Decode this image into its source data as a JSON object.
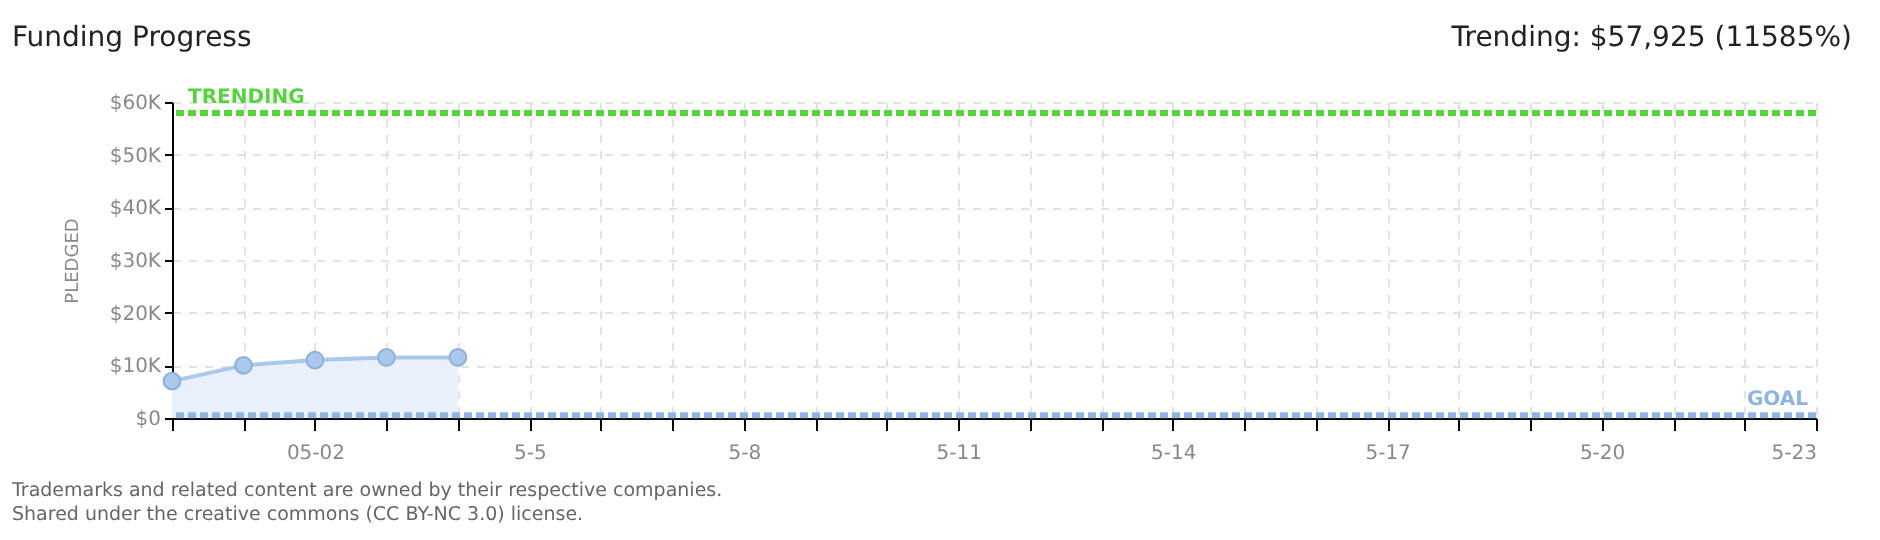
{
  "chart_data": {
    "type": "area",
    "title": "Funding Progress",
    "subtitle": "Trending:  $57,925 (11585%)",
    "ylabel": "PLEDGED",
    "x": [
      "--04-30",
      "--05-01",
      "--05-02",
      "--05-03",
      "--05-04"
    ],
    "series": [
      {
        "color": "#a9c8ec",
        "values": [
          7000,
          10000,
          11000,
          11500,
          11500
        ]
      }
    ],
    "xlim": [
      "--04-30",
      "--05-23"
    ],
    "xticks": [
      {
        "value": "--04-30",
        "label": null
      },
      {
        "value": "--05-01",
        "label": null
      },
      {
        "value": "--05-02",
        "label": "05-02"
      },
      {
        "value": "--05-03",
        "label": null
      },
      {
        "value": "--05-04",
        "label": null
      },
      {
        "value": "--05-05",
        "label": "5-5"
      },
      {
        "value": "--05-06",
        "label": null
      },
      {
        "value": "--05-07",
        "label": null
      },
      {
        "value": "--05-08",
        "label": "5-8"
      },
      {
        "value": "--05-09",
        "label": null
      },
      {
        "value": "--05-10",
        "label": null
      },
      {
        "value": "--05-11",
        "label": "5-11"
      },
      {
        "value": "--05-12",
        "label": null
      },
      {
        "value": "--05-13",
        "label": null
      },
      {
        "value": "--05-14",
        "label": "5-14"
      },
      {
        "value": "--05-15",
        "label": null
      },
      {
        "value": "--05-16",
        "label": null
      },
      {
        "value": "--05-17",
        "label": "5-17"
      },
      {
        "value": "--05-18",
        "label": null
      },
      {
        "value": "--05-19",
        "label": null
      },
      {
        "value": "--05-20",
        "label": "5-20"
      },
      {
        "value": "--05-21",
        "label": null
      },
      {
        "value": "--05-22",
        "label": null
      },
      {
        "value": "--05-23",
        "label": "5-23"
      }
    ],
    "ylim": [
      0,
      60000
    ],
    "yticks": [
      {
        "value": 0,
        "label": "$0"
      },
      {
        "value": 10000,
        "label": "$10K"
      },
      {
        "value": 20000,
        "label": "$20K"
      },
      {
        "value": 30000,
        "label": "$30K"
      },
      {
        "value": 40000,
        "label": "$40K"
      },
      {
        "value": 50000,
        "label": "$50K"
      },
      {
        "value": 60000,
        "label": "$60K"
      }
    ],
    "ref_lines": [
      {
        "axis": "y",
        "value": 57925,
        "label": "TRENDING",
        "color": "#55d43f",
        "line_style": "dashed"
      },
      {
        "axis": "y",
        "value": 500,
        "label": "GOAL",
        "color": "#8fb4e3",
        "line_style": "dashed"
      }
    ],
    "grid": true,
    "marker": "circle",
    "annotations": [
      "Trademarks and related content are owned by their respective companies.",
      "Shared under the creative commons (CC BY-NC 3.0) license."
    ]
  }
}
